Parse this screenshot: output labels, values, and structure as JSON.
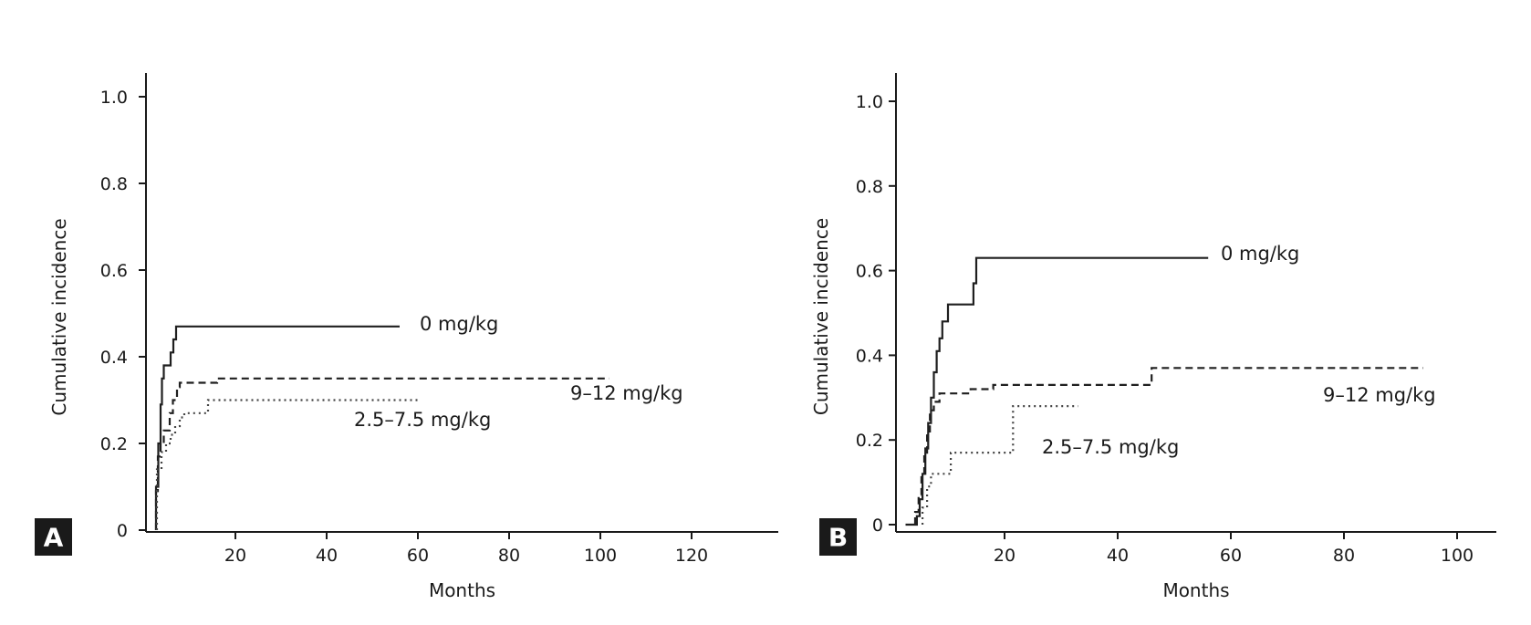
{
  "chart_data": [
    {
      "type": "line",
      "panel_label": "A",
      "xlabel": "Months",
      "ylabel": "Cumulative incidence",
      "xlim": [
        0,
        140
      ],
      "ylim": [
        0,
        1.0
      ],
      "xticks": [
        20,
        40,
        60,
        80,
        100,
        120
      ],
      "yticks": [
        0,
        0.2,
        0.4,
        0.6,
        0.8,
        1.0
      ],
      "ytick_labels": [
        "0",
        "0.2",
        "0.4",
        "0.6",
        "0.8",
        "1.0"
      ],
      "series": [
        {
          "name": "0 mg/kg",
          "style": "solid",
          "points": [
            [
              2.6,
              0
            ],
            [
              2.6,
              0.1
            ],
            [
              3.1,
              0.1
            ],
            [
              3.1,
              0.2
            ],
            [
              3.6,
              0.2
            ],
            [
              3.6,
              0.29
            ],
            [
              3.9,
              0.29
            ],
            [
              3.9,
              0.35
            ],
            [
              4.3,
              0.35
            ],
            [
              4.3,
              0.38
            ],
            [
              5.8,
              0.38
            ],
            [
              5.8,
              0.41
            ],
            [
              6.4,
              0.41
            ],
            [
              6.4,
              0.44
            ],
            [
              7,
              0.44
            ],
            [
              7,
              0.47
            ],
            [
              56,
              0.47
            ]
          ]
        },
        {
          "name": "9–12 mg/kg",
          "style": "dashed",
          "points": [
            [
              2.6,
              0
            ],
            [
              2.6,
              0.09
            ],
            [
              3,
              0.09
            ],
            [
              3,
              0.17
            ],
            [
              3.6,
              0.17
            ],
            [
              3.6,
              0.2
            ],
            [
              4.3,
              0.2
            ],
            [
              4.3,
              0.23
            ],
            [
              5.6,
              0.23
            ],
            [
              5.6,
              0.27
            ],
            [
              6.3,
              0.27
            ],
            [
              6.3,
              0.3
            ],
            [
              7.2,
              0.3
            ],
            [
              7.2,
              0.33
            ],
            [
              7.8,
              0.33
            ],
            [
              7.8,
              0.34
            ],
            [
              16,
              0.34
            ],
            [
              16,
              0.35
            ],
            [
              102,
              0.35
            ]
          ]
        },
        {
          "name": "2.5–7.5 mg/kg",
          "style": "dotted",
          "points": [
            [
              2.8,
              0
            ],
            [
              2.8,
              0.14
            ],
            [
              3.8,
              0.14
            ],
            [
              3.8,
              0.18
            ],
            [
              4.8,
              0.18
            ],
            [
              4.8,
              0.2
            ],
            [
              5.8,
              0.2
            ],
            [
              5.8,
              0.22
            ],
            [
              6.8,
              0.22
            ],
            [
              6.8,
              0.24
            ],
            [
              7.8,
              0.24
            ],
            [
              7.8,
              0.26
            ],
            [
              8.8,
              0.26
            ],
            [
              8.8,
              0.27
            ],
            [
              14,
              0.27
            ],
            [
              14,
              0.3
            ],
            [
              60,
              0.3
            ]
          ]
        }
      ]
    },
    {
      "type": "line",
      "panel_label": "B",
      "xlabel": "Months",
      "ylabel": "Cumulative incidence",
      "xlim": [
        0,
        106
      ],
      "ylim": [
        0,
        1.0
      ],
      "xticks": [
        20,
        40,
        60,
        80,
        100
      ],
      "yticks": [
        0,
        0.2,
        0.4,
        0.6,
        0.8,
        1.0
      ],
      "ytick_labels": [
        "0",
        "0.2",
        "0.4",
        "0.6",
        "0.8",
        "1.0"
      ],
      "series": [
        {
          "name": "0 mg/kg",
          "style": "solid",
          "points": [
            [
              2.5,
              0
            ],
            [
              4.5,
              0
            ],
            [
              4.5,
              0.02
            ],
            [
              5,
              0.02
            ],
            [
              5,
              0.06
            ],
            [
              5.5,
              0.06
            ],
            [
              5.5,
              0.12
            ],
            [
              6,
              0.12
            ],
            [
              6,
              0.18
            ],
            [
              6.5,
              0.18
            ],
            [
              6.5,
              0.24
            ],
            [
              7,
              0.24
            ],
            [
              7,
              0.3
            ],
            [
              7.5,
              0.3
            ],
            [
              7.5,
              0.36
            ],
            [
              8,
              0.36
            ],
            [
              8,
              0.41
            ],
            [
              8.5,
              0.41
            ],
            [
              8.5,
              0.44
            ],
            [
              9,
              0.44
            ],
            [
              9,
              0.48
            ],
            [
              10,
              0.48
            ],
            [
              10,
              0.52
            ],
            [
              14.5,
              0.52
            ],
            [
              14.5,
              0.57
            ],
            [
              15,
              0.57
            ],
            [
              15,
              0.63
            ],
            [
              56,
              0.63
            ]
          ]
        },
        {
          "name": "9–12 mg/kg",
          "style": "dashed",
          "points": [
            [
              4.2,
              0
            ],
            [
              4.2,
              0.03
            ],
            [
              4.8,
              0.03
            ],
            [
              4.8,
              0.07
            ],
            [
              5.3,
              0.07
            ],
            [
              5.3,
              0.12
            ],
            [
              5.8,
              0.12
            ],
            [
              5.8,
              0.17
            ],
            [
              6.3,
              0.17
            ],
            [
              6.3,
              0.22
            ],
            [
              6.8,
              0.22
            ],
            [
              6.8,
              0.27
            ],
            [
              7.5,
              0.27
            ],
            [
              7.5,
              0.29
            ],
            [
              8.5,
              0.29
            ],
            [
              8.5,
              0.31
            ],
            [
              14,
              0.31
            ],
            [
              14,
              0.32
            ],
            [
              18,
              0.32
            ],
            [
              18,
              0.33
            ],
            [
              46,
              0.33
            ],
            [
              46,
              0.37
            ],
            [
              94,
              0.37
            ]
          ]
        },
        {
          "name": "2.5–7.5 mg/kg",
          "style": "dotted",
          "points": [
            [
              5.5,
              0
            ],
            [
              5.5,
              0.04
            ],
            [
              6.3,
              0.04
            ],
            [
              6.3,
              0.09
            ],
            [
              7,
              0.09
            ],
            [
              7,
              0.12
            ],
            [
              10.5,
              0.12
            ],
            [
              10.5,
              0.17
            ],
            [
              21.5,
              0.17
            ],
            [
              21.5,
              0.28
            ],
            [
              33,
              0.28
            ]
          ]
        }
      ]
    }
  ]
}
